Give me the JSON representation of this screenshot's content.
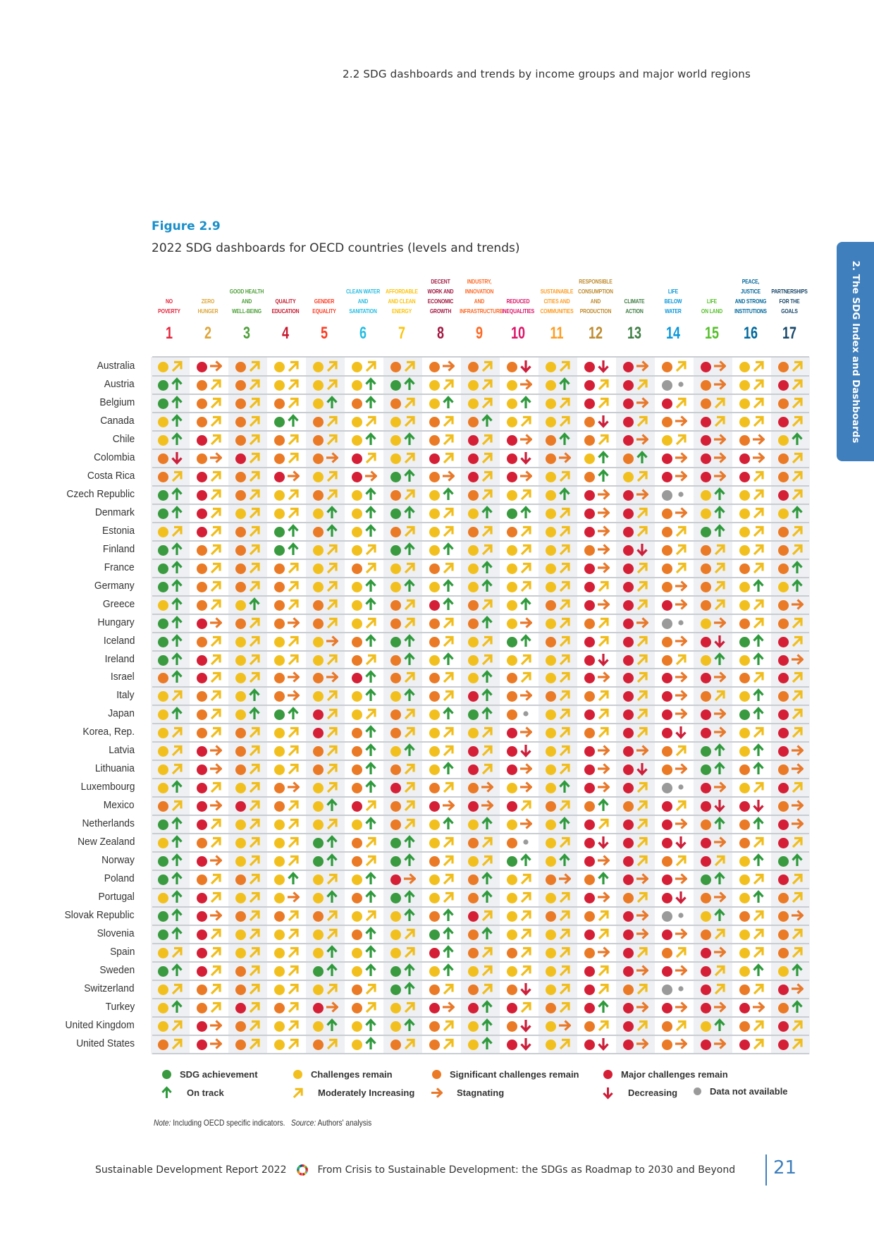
{
  "running_header": "2.2 SDG dashboards and trends by income groups and major world regions",
  "side_tab": "2. The SDG Index and Dashboards",
  "figure": {
    "number": "Figure 2.9",
    "title": "2022 SDG dashboards for OECD countries (levels and trends)"
  },
  "goals": [
    {
      "num": "1",
      "name": "NO\nPOVERTY",
      "color": "#e5243b"
    },
    {
      "num": "2",
      "name": "ZERO\nHUNGER",
      "color": "#dda63a"
    },
    {
      "num": "3",
      "name": "GOOD HEALTH\nAND\nWELL-BEING",
      "color": "#4c9f38"
    },
    {
      "num": "4",
      "name": "QUALITY\nEDUCATION",
      "color": "#c5192d"
    },
    {
      "num": "5",
      "name": "GENDER\nEQUALITY",
      "color": "#ff3a21"
    },
    {
      "num": "6",
      "name": "CLEAN WATER\nAND\nSANITATION",
      "color": "#26bde2"
    },
    {
      "num": "7",
      "name": "AFFORDABLE\nAND CLEAN\nENERGY",
      "color": "#fcc30b"
    },
    {
      "num": "8",
      "name": "DECENT\nWORK AND\nECONOMIC\nGROWTH",
      "color": "#a21942"
    },
    {
      "num": "9",
      "name": "INDUSTRY,\nINNOVATION\nAND\nINFRASTRUCTURE",
      "color": "#fd6925"
    },
    {
      "num": "10",
      "name": "REDUCED\nINEQUALITIES",
      "color": "#dd1367"
    },
    {
      "num": "11",
      "name": "SUSTAINABLE\nCITIES AND\nCOMMUNITIES",
      "color": "#fd9d24"
    },
    {
      "num": "12",
      "name": "RESPONSIBLE\nCONSUMPTION\nAND\nPRODUCTION",
      "color": "#bf8b2e"
    },
    {
      "num": "13",
      "name": "CLIMATE\nACTION",
      "color": "#3f7e44"
    },
    {
      "num": "14",
      "name": "LIFE\nBELOW\nWATER",
      "color": "#0a97d9"
    },
    {
      "num": "15",
      "name": "LIFE\nON LAND",
      "color": "#56c02b"
    },
    {
      "num": "16",
      "name": "PEACE,\nJUSTICE\nAND STRONG\nINSTITUTIONS",
      "color": "#00689d"
    },
    {
      "num": "17",
      "name": "PARTNERSHIPS\nFOR THE\nGOALS",
      "color": "#19486a"
    }
  ],
  "status_colors": {
    "g": "#3a9a3f",
    "y": "#f2c01e",
    "o": "#ea7a25",
    "r": "#d41f36",
    "n": "#9a9a9a"
  },
  "trend_colors": {
    "u": "#2e9a3c",
    "m": "#f0bd1c",
    "s": "#e8782a",
    "d": "#cc1f3a",
    "n": "#9a9a9a"
  },
  "legend": {
    "status": [
      {
        "code": "g",
        "label": "SDG achievement"
      },
      {
        "code": "y",
        "label": "Challenges remain"
      },
      {
        "code": "o",
        "label": "Significant challenges remain"
      },
      {
        "code": "r",
        "label": "Major challenges remain"
      }
    ],
    "trend": [
      {
        "code": "u",
        "label": "On track"
      },
      {
        "code": "m",
        "label": "Moderately Increasing"
      },
      {
        "code": "s",
        "label": "Stagnating"
      },
      {
        "code": "d",
        "label": "Decreasing"
      },
      {
        "code": "n",
        "label": "Data not available"
      }
    ]
  },
  "rows": [
    {
      "country": "Australia",
      "cells": [
        "y-m",
        "r-s",
        "o-m",
        "y-m",
        "y-m",
        "y-m",
        "o-m",
        "o-s",
        "o-m",
        "o-d",
        "y-m",
        "r-d",
        "r-s",
        "o-m",
        "r-s",
        "y-m",
        "o-m"
      ]
    },
    {
      "country": "Austria",
      "cells": [
        "g-u",
        "o-m",
        "o-m",
        "y-m",
        "y-m",
        "y-u",
        "g-u",
        "y-m",
        "y-m",
        "y-s",
        "y-u",
        "r-m",
        "r-m",
        "n-n",
        "o-s",
        "y-m",
        "r-m"
      ]
    },
    {
      "country": "Belgium",
      "cells": [
        "g-u",
        "o-m",
        "o-m",
        "o-m",
        "y-u",
        "o-u",
        "o-m",
        "y-u",
        "y-m",
        "y-u",
        "y-m",
        "r-m",
        "r-s",
        "r-m",
        "o-m",
        "y-m",
        "o-m"
      ]
    },
    {
      "country": "Canada",
      "cells": [
        "y-u",
        "o-m",
        "o-m",
        "g-u",
        "o-m",
        "y-m",
        "y-m",
        "o-m",
        "o-u",
        "y-m",
        "y-m",
        "o-d",
        "r-m",
        "o-s",
        "r-m",
        "y-m",
        "r-m"
      ]
    },
    {
      "country": "Chile",
      "cells": [
        "y-u",
        "r-m",
        "o-m",
        "o-m",
        "o-m",
        "y-u",
        "y-u",
        "o-m",
        "r-m",
        "r-s",
        "o-u",
        "o-m",
        "r-s",
        "y-m",
        "r-s",
        "o-s",
        "y-u"
      ]
    },
    {
      "country": "Colombia",
      "cells": [
        "o-d",
        "o-s",
        "r-m",
        "o-m",
        "o-s",
        "r-m",
        "y-m",
        "r-m",
        "r-m",
        "r-d",
        "o-s",
        "y-u",
        "o-u",
        "r-s",
        "r-s",
        "r-s",
        "o-m"
      ]
    },
    {
      "country": "Costa Rica",
      "cells": [
        "o-m",
        "r-m",
        "o-m",
        "r-s",
        "y-m",
        "r-s",
        "g-u",
        "o-s",
        "r-m",
        "r-s",
        "y-m",
        "o-u",
        "y-m",
        "r-s",
        "r-s",
        "r-m",
        "o-m"
      ]
    },
    {
      "country": "Czech Republic",
      "cells": [
        "g-u",
        "r-m",
        "o-m",
        "y-m",
        "o-m",
        "y-u",
        "o-m",
        "y-u",
        "o-m",
        "y-m",
        "y-u",
        "r-s",
        "r-s",
        "n-n",
        "y-u",
        "y-m",
        "r-m"
      ]
    },
    {
      "country": "Denmark",
      "cells": [
        "g-u",
        "r-m",
        "y-m",
        "y-m",
        "y-u",
        "y-u",
        "g-u",
        "y-m",
        "y-u",
        "g-u",
        "y-m",
        "r-s",
        "r-m",
        "o-s",
        "y-u",
        "y-m",
        "y-u"
      ]
    },
    {
      "country": "Estonia",
      "cells": [
        "y-m",
        "r-m",
        "o-m",
        "g-u",
        "o-u",
        "y-u",
        "o-m",
        "y-m",
        "o-m",
        "o-m",
        "y-m",
        "r-s",
        "r-m",
        "o-m",
        "g-u",
        "y-m",
        "o-m"
      ]
    },
    {
      "country": "Finland",
      "cells": [
        "g-u",
        "o-m",
        "o-m",
        "g-u",
        "y-m",
        "y-m",
        "g-u",
        "y-u",
        "y-m",
        "y-m",
        "y-m",
        "o-s",
        "r-d",
        "o-m",
        "o-m",
        "y-m",
        "o-m"
      ]
    },
    {
      "country": "France",
      "cells": [
        "g-u",
        "o-m",
        "o-m",
        "o-m",
        "y-m",
        "o-m",
        "y-m",
        "o-m",
        "y-u",
        "y-m",
        "y-m",
        "r-s",
        "r-m",
        "o-m",
        "o-m",
        "o-m",
        "o-u"
      ]
    },
    {
      "country": "Germany",
      "cells": [
        "g-u",
        "o-m",
        "o-m",
        "o-m",
        "y-m",
        "y-u",
        "y-u",
        "y-u",
        "y-u",
        "y-m",
        "y-m",
        "r-m",
        "r-m",
        "o-s",
        "o-m",
        "y-u",
        "y-u"
      ]
    },
    {
      "country": "Greece",
      "cells": [
        "y-u",
        "o-m",
        "y-u",
        "o-m",
        "o-m",
        "y-u",
        "o-m",
        "r-u",
        "o-m",
        "y-u",
        "o-m",
        "r-s",
        "r-m",
        "r-s",
        "o-m",
        "y-m",
        "o-s"
      ]
    },
    {
      "country": "Hungary",
      "cells": [
        "g-u",
        "r-s",
        "o-m",
        "o-s",
        "o-m",
        "y-m",
        "o-m",
        "o-m",
        "o-u",
        "y-s",
        "y-m",
        "o-m",
        "r-s",
        "n-n",
        "y-s",
        "o-m",
        "o-m"
      ]
    },
    {
      "country": "Iceland",
      "cells": [
        "g-u",
        "o-m",
        "y-m",
        "y-m",
        "y-s",
        "o-u",
        "g-u",
        "o-m",
        "y-m",
        "g-u",
        "o-m",
        "r-m",
        "r-m",
        "o-s",
        "r-d",
        "g-u",
        "r-m"
      ]
    },
    {
      "country": "Ireland",
      "cells": [
        "g-u",
        "r-m",
        "y-m",
        "y-m",
        "y-m",
        "o-m",
        "o-u",
        "y-u",
        "y-m",
        "y-m",
        "y-m",
        "r-d",
        "r-m",
        "o-m",
        "y-u",
        "y-u",
        "r-s"
      ]
    },
    {
      "country": "Israel",
      "cells": [
        "o-u",
        "r-m",
        "y-m",
        "o-s",
        "o-s",
        "r-u",
        "o-m",
        "o-m",
        "y-u",
        "o-m",
        "y-m",
        "r-s",
        "r-m",
        "r-s",
        "r-s",
        "o-m",
        "r-m"
      ]
    },
    {
      "country": "Italy",
      "cells": [
        "y-m",
        "o-m",
        "y-u",
        "o-s",
        "y-m",
        "y-u",
        "y-u",
        "o-m",
        "r-u",
        "o-s",
        "o-m",
        "o-m",
        "r-m",
        "r-s",
        "o-m",
        "y-u",
        "o-m"
      ]
    },
    {
      "country": "Japan",
      "cells": [
        "y-u",
        "o-m",
        "y-u",
        "g-u",
        "r-m",
        "y-m",
        "o-m",
        "y-u",
        "g-u",
        "o-n",
        "y-m",
        "r-m",
        "r-m",
        "r-s",
        "r-s",
        "g-u",
        "r-m"
      ]
    },
    {
      "country": "Korea, Rep.",
      "cells": [
        "y-m",
        "o-m",
        "o-m",
        "y-m",
        "r-m",
        "o-u",
        "o-m",
        "y-m",
        "y-m",
        "r-s",
        "y-m",
        "o-m",
        "r-m",
        "r-d",
        "r-s",
        "y-m",
        "r-m"
      ]
    },
    {
      "country": "Latvia",
      "cells": [
        "y-m",
        "r-s",
        "o-m",
        "y-m",
        "o-m",
        "o-u",
        "y-u",
        "y-m",
        "r-m",
        "r-d",
        "y-m",
        "r-s",
        "r-s",
        "o-m",
        "g-u",
        "y-u",
        "r-s"
      ]
    },
    {
      "country": "Lithuania",
      "cells": [
        "y-m",
        "r-s",
        "o-m",
        "y-m",
        "o-m",
        "o-u",
        "o-m",
        "y-u",
        "r-m",
        "r-s",
        "y-m",
        "r-s",
        "r-d",
        "o-s",
        "g-u",
        "o-u",
        "o-s"
      ]
    },
    {
      "country": "Luxembourg",
      "cells": [
        "y-u",
        "r-m",
        "y-m",
        "o-s",
        "y-m",
        "o-u",
        "r-m",
        "o-m",
        "o-s",
        "y-s",
        "y-u",
        "r-s",
        "r-m",
        "n-n",
        "r-s",
        "y-m",
        "r-m"
      ]
    },
    {
      "country": "Mexico",
      "cells": [
        "o-m",
        "r-s",
        "r-m",
        "o-m",
        "y-u",
        "r-m",
        "o-m",
        "r-s",
        "r-s",
        "r-m",
        "o-m",
        "o-u",
        "o-m",
        "r-m",
        "r-d",
        "r-d",
        "o-s"
      ]
    },
    {
      "country": "Netherlands",
      "cells": [
        "g-u",
        "r-m",
        "y-m",
        "y-m",
        "y-m",
        "y-u",
        "o-m",
        "y-u",
        "y-u",
        "y-s",
        "y-u",
        "r-m",
        "r-m",
        "r-s",
        "o-u",
        "o-u",
        "r-s"
      ]
    },
    {
      "country": "New Zealand",
      "cells": [
        "y-u",
        "o-m",
        "y-m",
        "y-m",
        "g-u",
        "o-m",
        "g-u",
        "y-m",
        "o-m",
        "o-n",
        "y-m",
        "r-d",
        "r-m",
        "r-d",
        "r-s",
        "o-m",
        "r-m"
      ]
    },
    {
      "country": "Norway",
      "cells": [
        "g-u",
        "r-s",
        "y-m",
        "y-m",
        "g-u",
        "o-m",
        "g-u",
        "o-m",
        "y-m",
        "g-u",
        "y-u",
        "r-s",
        "r-m",
        "o-m",
        "r-m",
        "y-u",
        "g-u"
      ]
    },
    {
      "country": "Poland",
      "cells": [
        "g-u",
        "o-m",
        "o-m",
        "y-u",
        "y-m",
        "y-u",
        "r-s",
        "y-m",
        "o-u",
        "y-m",
        "o-s",
        "o-u",
        "r-s",
        "r-s",
        "g-u",
        "y-m",
        "r-m"
      ]
    },
    {
      "country": "Portugal",
      "cells": [
        "y-u",
        "r-m",
        "y-m",
        "y-s",
        "y-u",
        "o-u",
        "g-u",
        "y-m",
        "o-u",
        "y-m",
        "y-m",
        "r-s",
        "o-m",
        "r-d",
        "o-s",
        "y-u",
        "o-m"
      ]
    },
    {
      "country": "Slovak Republic",
      "cells": [
        "g-u",
        "r-s",
        "o-m",
        "o-m",
        "o-m",
        "y-m",
        "y-u",
        "o-u",
        "r-m",
        "y-m",
        "o-m",
        "o-m",
        "r-s",
        "n-n",
        "y-u",
        "o-m",
        "o-s"
      ]
    },
    {
      "country": "Slovenia",
      "cells": [
        "g-u",
        "r-m",
        "y-m",
        "y-m",
        "y-m",
        "o-u",
        "y-m",
        "g-u",
        "o-u",
        "y-m",
        "y-m",
        "r-m",
        "r-s",
        "r-s",
        "o-m",
        "y-m",
        "o-m"
      ]
    },
    {
      "country": "Spain",
      "cells": [
        "y-m",
        "r-m",
        "y-m",
        "y-m",
        "y-u",
        "y-u",
        "y-m",
        "r-u",
        "o-m",
        "o-m",
        "y-m",
        "o-s",
        "r-m",
        "o-m",
        "r-s",
        "y-m",
        "o-m"
      ]
    },
    {
      "country": "Sweden",
      "cells": [
        "g-u",
        "r-m",
        "o-m",
        "y-m",
        "g-u",
        "y-u",
        "g-u",
        "y-u",
        "y-m",
        "y-m",
        "y-m",
        "r-m",
        "r-s",
        "r-s",
        "r-m",
        "y-u",
        "y-u"
      ]
    },
    {
      "country": "Switzerland",
      "cells": [
        "y-m",
        "o-m",
        "o-m",
        "y-m",
        "y-m",
        "o-m",
        "g-u",
        "o-m",
        "o-m",
        "o-d",
        "y-m",
        "r-m",
        "o-m",
        "n-n",
        "r-m",
        "o-m",
        "r-s"
      ]
    },
    {
      "country": "Turkey",
      "cells": [
        "y-u",
        "o-m",
        "r-m",
        "o-m",
        "r-s",
        "o-m",
        "y-m",
        "r-s",
        "r-u",
        "r-m",
        "o-m",
        "r-u",
        "r-s",
        "r-s",
        "r-s",
        "r-s",
        "o-u"
      ]
    },
    {
      "country": "United Kingdom",
      "cells": [
        "y-m",
        "r-s",
        "o-m",
        "y-m",
        "y-u",
        "y-u",
        "y-u",
        "o-m",
        "y-u",
        "o-d",
        "y-s",
        "o-m",
        "r-m",
        "o-m",
        "y-u",
        "o-m",
        "r-m"
      ]
    },
    {
      "country": "United States",
      "cells": [
        "o-m",
        "r-s",
        "o-m",
        "y-m",
        "o-m",
        "y-u",
        "o-m",
        "o-m",
        "y-u",
        "r-d",
        "y-m",
        "r-d",
        "r-s",
        "o-s",
        "r-s",
        "r-m",
        "r-m"
      ]
    }
  ],
  "note": {
    "note_label": "Note:",
    "note_text": " Including OECD specific indicators.",
    "source_label": "Source:",
    "source_text": " Authors' analysis"
  },
  "footer": {
    "left": "Sustainable Development Report 2022",
    "right": "From Crisis to Sustainable Development: the SDGs as Roadmap to 2030 and Beyond",
    "page": "21"
  }
}
